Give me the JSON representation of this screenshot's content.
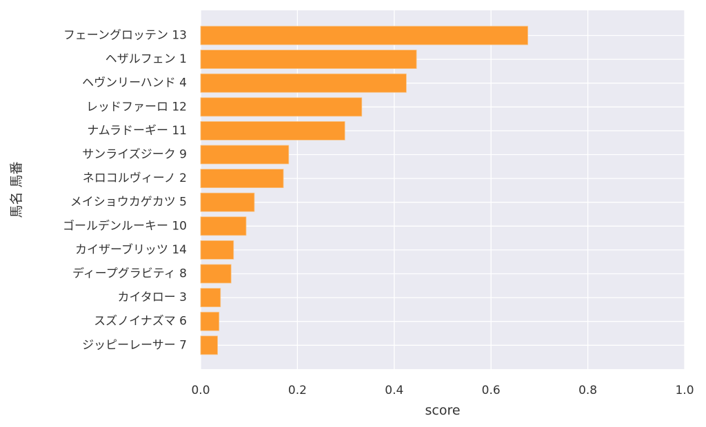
{
  "chart_data": {
    "type": "bar",
    "orientation": "horizontal",
    "categories": [
      "フェーングロッテン 13",
      "ヘザルフェン 1",
      "ヘヴンリーハンド 4",
      "レッドファーロ 12",
      "ナムラドーギー 11",
      "サンライズジーク 9",
      "ネロコルヴィーノ 2",
      "メイショウカゲカツ 5",
      "ゴールデンルーキー 10",
      "カイザーブリッツ 14",
      "ディープグラビティ 8",
      "カイタロー 3",
      "スズノイナズマ 6",
      "ジッピーレーサー 7"
    ],
    "values": [
      0.676,
      0.446,
      0.425,
      0.333,
      0.298,
      0.182,
      0.171,
      0.111,
      0.094,
      0.068,
      0.063,
      0.041,
      0.038,
      0.035
    ],
    "xlabel": "score",
    "ylabel": "馬名 馬番",
    "xlim": [
      0,
      1.0
    ],
    "xticks": [
      "0.0",
      "0.2",
      "0.4",
      "0.6",
      "0.8",
      "1.0"
    ],
    "grid": true,
    "colors": {
      "bar": "#fd9a2e",
      "bar_edge": "#f7c58a",
      "plot_background": "#eaeaf2",
      "grid": "#ffffff"
    }
  }
}
